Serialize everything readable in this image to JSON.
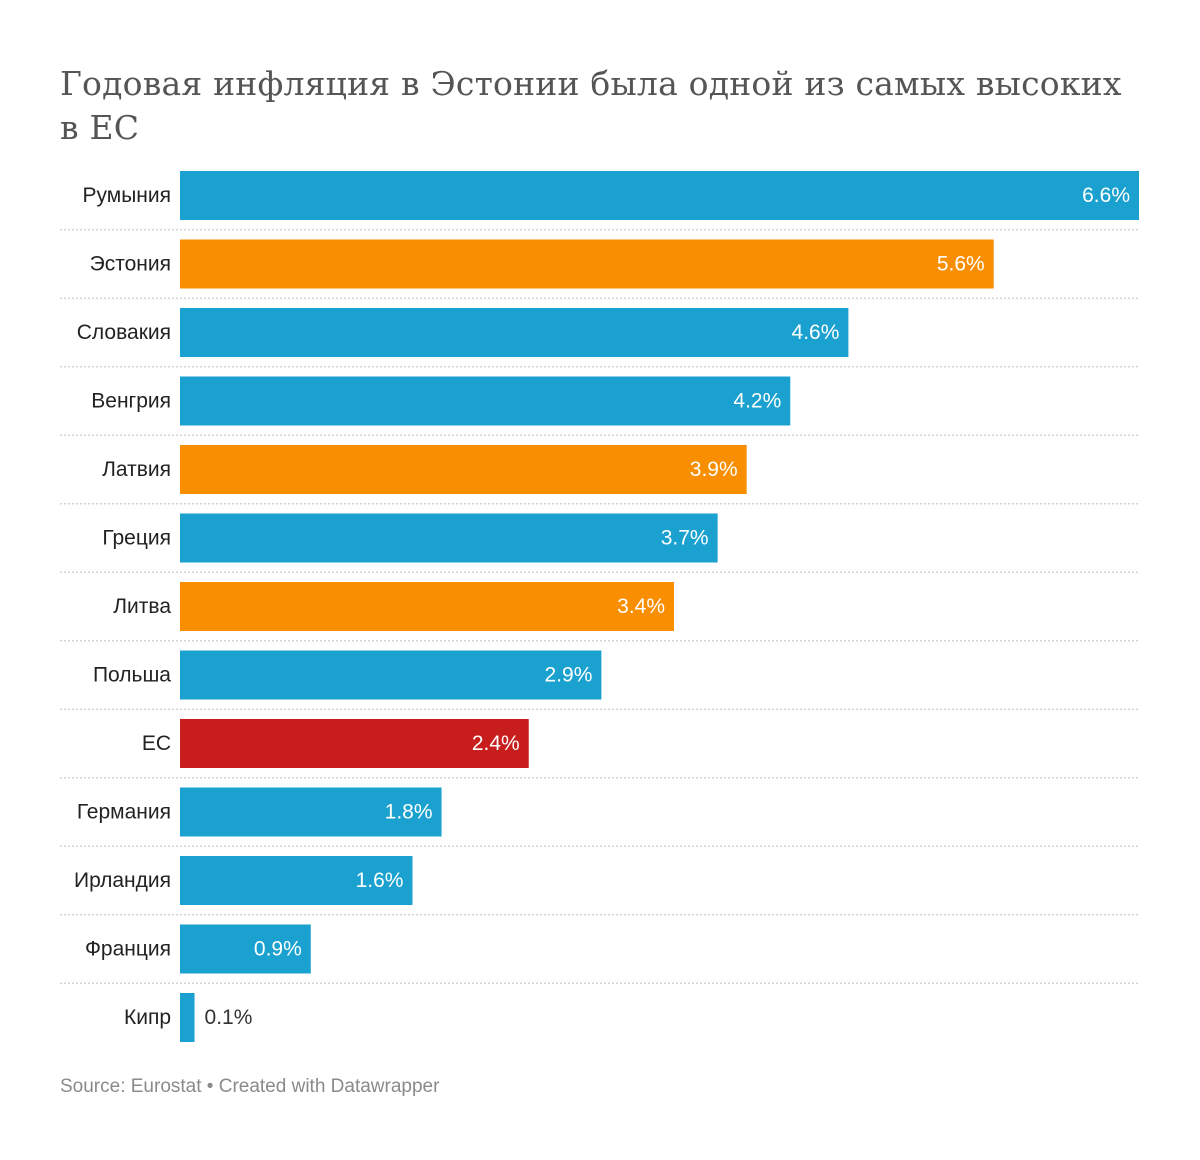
{
  "chart_data": {
    "type": "bar",
    "orientation": "horizontal",
    "title": "Годовая инфляция в Эстонии была одной из самых высоких в ЕС",
    "xlabel": "",
    "ylabel": "",
    "xlim": [
      0,
      6.6
    ],
    "unit_suffix": "%",
    "grid": false,
    "legend": "none",
    "categories": [
      "Румыния",
      "Эстония",
      "Словакия",
      "Венгрия",
      "Латвия",
      "Греция",
      "Литва",
      "Польша",
      "ЕС",
      "Германия",
      "Ирландия",
      "Франция",
      "Кипр"
    ],
    "values": [
      6.6,
      5.6,
      4.6,
      4.2,
      3.9,
      3.7,
      3.4,
      2.9,
      2.4,
      1.8,
      1.6,
      0.9,
      0.1
    ],
    "value_labels": [
      "6.6%",
      "5.6%",
      "4.6%",
      "4.2%",
      "3.9%",
      "3.7%",
      "3.4%",
      "2.9%",
      "2.4%",
      "1.8%",
      "1.6%",
      "0.9%",
      "0.1%"
    ],
    "highlight": [
      "default",
      "baltic",
      "default",
      "default",
      "baltic",
      "default",
      "baltic",
      "default",
      "eu",
      "default",
      "default",
      "default",
      "default"
    ]
  },
  "colors": {
    "default": "#1aa1cf",
    "baltic": "#f88e00",
    "eu": "#c71d1d",
    "separator": "#cccccc",
    "label_inside": "#ffffff",
    "label_outside": "#333333"
  },
  "footer": {
    "text": "Source: Eurostat • Created with Datawrapper"
  }
}
